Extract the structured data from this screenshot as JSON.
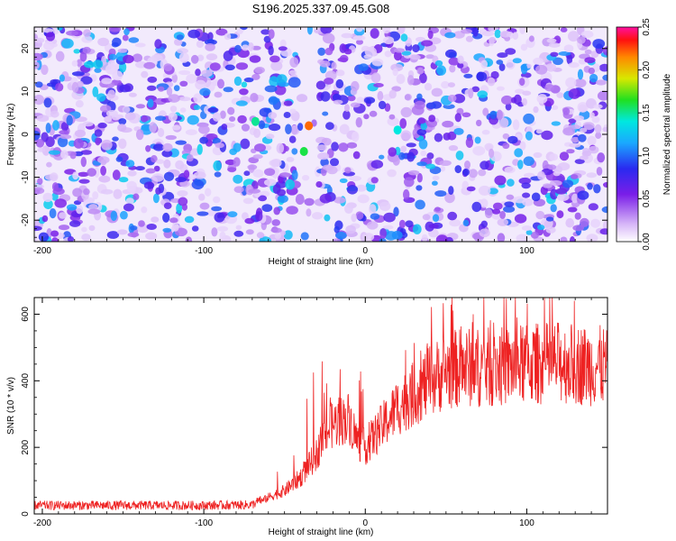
{
  "title": "S196.2025.337.09.45.G08",
  "chart_data": [
    {
      "type": "heatmap",
      "xlabel": "Height of straight line (km)",
      "ylabel": "Frequency (Hz)",
      "xlim": [
        -205,
        150
      ],
      "ylim": [
        -25,
        25
      ],
      "xticks": [
        -200,
        -100,
        0,
        100
      ],
      "yticks": [
        -20,
        -10,
        0,
        10,
        20
      ],
      "colorbar": {
        "label": "Normalized spectral amplitude",
        "range": [
          0,
          0.25
        ],
        "ticks": [
          "0.00",
          "0.05",
          "0.10",
          "0.15",
          "0.20",
          "0.25"
        ]
      },
      "features": [
        {
          "x": -35,
          "y": 2,
          "value": 0.22,
          "note": "peak"
        },
        {
          "x": -38,
          "y": -4,
          "value": 0.16
        },
        {
          "x": -68,
          "y": 3,
          "value": 0.15
        },
        {
          "x": 20,
          "y": 1,
          "value": 0.14
        }
      ],
      "background_range": [
        0.0,
        0.1
      ]
    },
    {
      "type": "line",
      "xlabel": "Height of straight line (km)",
      "ylabel": "SNR (10 * v/v)",
      "xlim": [
        -205,
        150
      ],
      "ylim": [
        0,
        650
      ],
      "xticks": [
        -200,
        -100,
        0,
        100
      ],
      "yticks": [
        0,
        200,
        400,
        600
      ],
      "color": "#ee2222",
      "series": [
        {
          "name": "SNR",
          "x": [
            -205,
            -150,
            -100,
            -70,
            -60,
            -50,
            -40,
            -30,
            -25,
            -20,
            -15,
            -10,
            -5,
            0,
            10,
            20,
            30,
            40,
            50,
            60,
            80,
            100,
            120,
            140,
            150
          ],
          "y": [
            20,
            20,
            20,
            22,
            50,
            70,
            110,
            180,
            240,
            270,
            280,
            290,
            220,
            200,
            260,
            320,
            360,
            400,
            430,
            440,
            440,
            450,
            455,
            445,
            445
          ]
        }
      ]
    }
  ]
}
